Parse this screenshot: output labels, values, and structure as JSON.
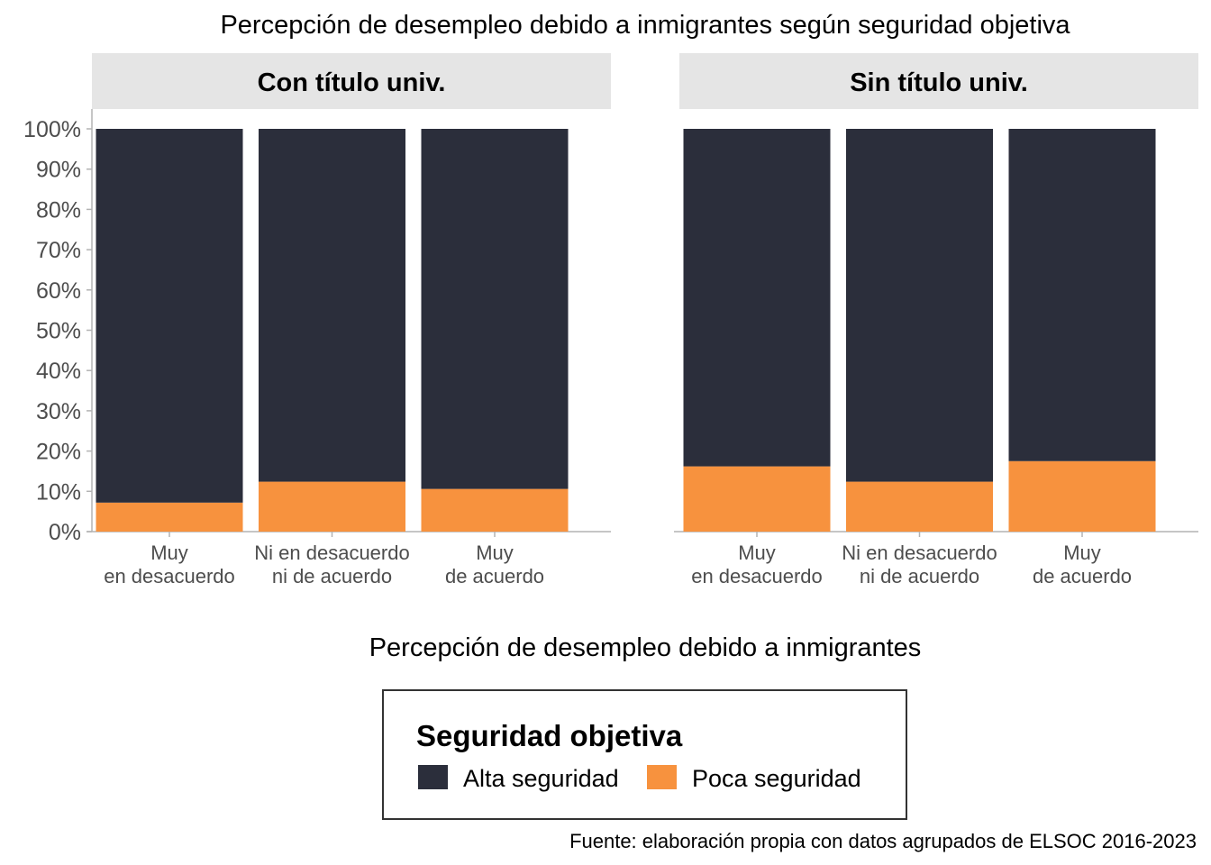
{
  "chart_data": {
    "type": "bar",
    "stacked": true,
    "title": "Percepción de desempleo debido a inmigrantes según seguridad objetiva",
    "xlabel": "Percepción de desempleo debido a inmigrantes",
    "ylabel": "",
    "ylim": [
      0,
      100
    ],
    "y_ticks": [
      "0%",
      "10%",
      "20%",
      "30%",
      "40%",
      "50%",
      "60%",
      "70%",
      "80%",
      "90%",
      "100%"
    ],
    "categories": [
      [
        "Muy",
        "en desacuerdo"
      ],
      [
        "Ni en desacuerdo",
        "ni de acuerdo"
      ],
      [
        "Muy",
        "de acuerdo"
      ]
    ],
    "colors": {
      "Alta seguridad": "#2b2e3b",
      "Poca seguridad": "#f7923e"
    },
    "facets": [
      {
        "label": "Con título univ.",
        "series": [
          {
            "name": "Poca seguridad",
            "values": [
              7.2,
              12.4,
              10.6
            ]
          },
          {
            "name": "Alta seguridad",
            "values": [
              92.8,
              87.6,
              89.4
            ]
          }
        ]
      },
      {
        "label": "Sin título univ.",
        "series": [
          {
            "name": "Poca seguridad",
            "values": [
              16.2,
              12.4,
              17.5
            ]
          },
          {
            "name": "Alta seguridad",
            "values": [
              83.8,
              87.6,
              82.5
            ]
          }
        ]
      }
    ],
    "legend": {
      "title": "Seguridad objetiva",
      "position": "bottom",
      "items": [
        "Alta seguridad",
        "Poca seguridad"
      ]
    },
    "caption": "Fuente: elaboración propia con datos agrupados de ELSOC 2016-2023",
    "grid": false
  }
}
